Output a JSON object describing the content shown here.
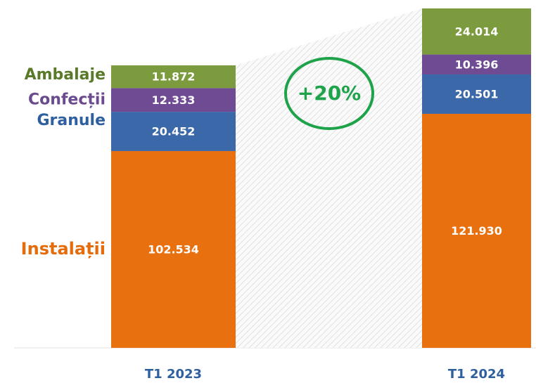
{
  "chart_data": {
    "type": "bar",
    "stacked": true,
    "categories": [
      "T1 2023",
      "T1 2024"
    ],
    "annotation": "+20%",
    "series": [
      {
        "name": "Instalații",
        "color": "#e8700e",
        "values": [
          102534,
          121930
        ],
        "value_labels": [
          "102.534",
          "121.930"
        ]
      },
      {
        "name": "Granule",
        "color": "#3b68a8",
        "values": [
          20452,
          20501
        ],
        "value_labels": [
          "20.452",
          "20.501"
        ]
      },
      {
        "name": "Confecții",
        "color": "#6e4b93",
        "values": [
          12333,
          10396
        ],
        "value_labels": [
          "12.333",
          "10.396"
        ]
      },
      {
        "name": "Ambalaje",
        "color": "#7c9b3e",
        "values": [
          11872,
          24014
        ],
        "value_labels": [
          "11.872",
          "24.014"
        ]
      }
    ]
  }
}
